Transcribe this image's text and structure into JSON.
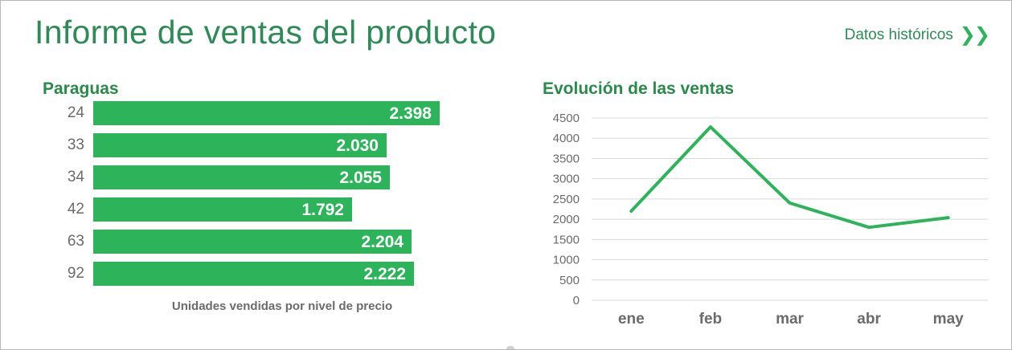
{
  "header": {
    "title": "Informe de ventas del producto",
    "hist_link_label": "Datos históricos",
    "hist_link_icon": "double-chevron-right-icon"
  },
  "colors": {
    "title": "#2e8b57",
    "accent": "#2db35a",
    "axis_text": "#6b6b6b",
    "grid": "#d9d9d9"
  },
  "chart_data": [
    {
      "type": "bar",
      "orientation": "horizontal",
      "title": "Paraguas",
      "categories": [
        "24",
        "33",
        "34",
        "42",
        "63",
        "92"
      ],
      "values": [
        2398,
        2030,
        2055,
        1792,
        2204,
        2222
      ],
      "value_labels": [
        "2.398",
        "2.030",
        "2.055",
        "1.792",
        "2.204",
        "2.222"
      ],
      "xlabel": "Unidades vendidas por nivel de precio",
      "ylabel": "",
      "xlim": [
        0,
        2398
      ],
      "grid": false,
      "legend": "none"
    },
    {
      "type": "line",
      "title": "Evolución de las ventas",
      "categories": [
        "ene",
        "feb",
        "mar",
        "abr",
        "may"
      ],
      "series": [
        {
          "values": [
            2200,
            4280,
            2400,
            1800,
            2040
          ]
        }
      ],
      "xlabel": "",
      "ylabel": "",
      "ylim": [
        0,
        4500
      ],
      "yticks": [
        "0",
        "500",
        "1000",
        "1500",
        "2000",
        "2500",
        "3000",
        "3500",
        "4000",
        "4500"
      ],
      "grid": true,
      "legend": "none"
    }
  ]
}
